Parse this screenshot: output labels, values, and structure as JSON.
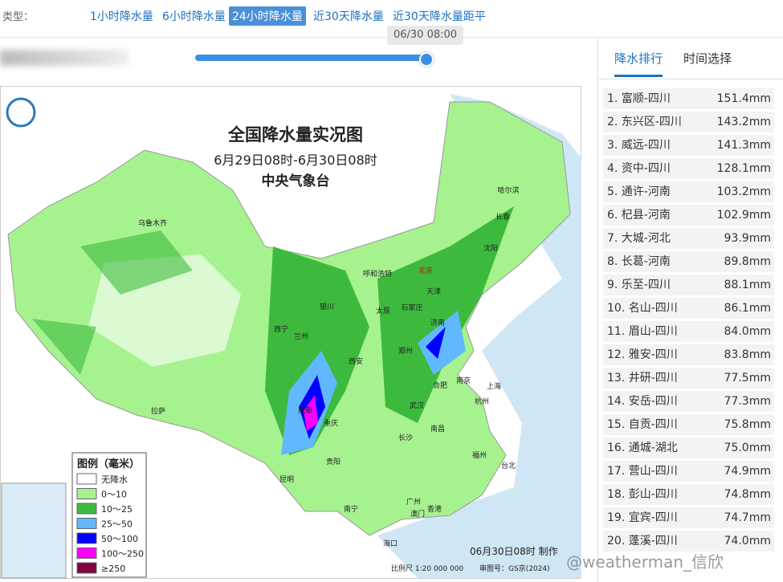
{
  "toolbar": {
    "label": "类型：",
    "tabs": [
      "1小时降水量",
      "6小时降水量",
      "24小时降水量",
      "近30天降水量",
      "近30天降水量距平"
    ],
    "active": 2
  },
  "slider": {
    "time": "06/30 08:00"
  },
  "map": {
    "title": "全国降水量实况图",
    "subtitle": "6月29日08时-6月30日08时",
    "agency": "中央气象台",
    "legend_title": "图例（毫米）",
    "legend": [
      {
        "label": "无降水",
        "color": "#ffffff"
      },
      {
        "label": "0～10",
        "color": "#a6f28f"
      },
      {
        "label": "10～25",
        "color": "#3dba3d"
      },
      {
        "label": "25～50",
        "color": "#61b8ff"
      },
      {
        "label": "50～100",
        "color": "#0000fe"
      },
      {
        "label": "100～250",
        "color": "#fa00fa"
      },
      {
        "label": "≥250",
        "color": "#7f0040"
      }
    ],
    "cities": [
      "乌鲁木齐",
      "拉萨",
      "西宁",
      "兰州",
      "银川",
      "呼和浩特",
      "北京",
      "天津",
      "石家庄",
      "太原",
      "济南",
      "郑州",
      "西安",
      "成都",
      "重庆",
      "武汉",
      "合肥",
      "南京",
      "上海",
      "杭州",
      "南昌",
      "长沙",
      "贵阳",
      "昆明",
      "南宁",
      "广州",
      "澳门",
      "香港",
      "福州",
      "台北",
      "海口",
      "哈尔滨",
      "长春",
      "沈阳"
    ],
    "made": "06月30日08时 制作",
    "scale": "比例尺 1:20 000 000",
    "approval": "审图号：GS京(2024)"
  },
  "panel": {
    "tabs": [
      "降水排行",
      "时间选择"
    ],
    "active": 0,
    "ranking": [
      {
        "label": "1. 富顺-四川",
        "value": "151.4mm"
      },
      {
        "label": "2. 东兴区-四川",
        "value": "143.2mm"
      },
      {
        "label": "3. 威远-四川",
        "value": "141.3mm"
      },
      {
        "label": "4. 资中-四川",
        "value": "128.1mm"
      },
      {
        "label": "5. 通许-河南",
        "value": "103.2mm"
      },
      {
        "label": "6. 杞县-河南",
        "value": "102.9mm"
      },
      {
        "label": "7. 大城-河北",
        "value": "93.9mm"
      },
      {
        "label": "8. 长葛-河南",
        "value": "89.8mm"
      },
      {
        "label": "9. 乐至-四川",
        "value": "88.1mm"
      },
      {
        "label": "10. 名山-四川",
        "value": "86.1mm"
      },
      {
        "label": "11. 眉山-四川",
        "value": "84.0mm"
      },
      {
        "label": "12. 雅安-四川",
        "value": "83.8mm"
      },
      {
        "label": "13. 井研-四川",
        "value": "77.5mm"
      },
      {
        "label": "14. 安岳-四川",
        "value": "77.3mm"
      },
      {
        "label": "15. 自贡-四川",
        "value": "75.8mm"
      },
      {
        "label": "16. 通城-湖北",
        "value": "75.0mm"
      },
      {
        "label": "17. 营山-四川",
        "value": "74.9mm"
      },
      {
        "label": "18. 彭山-四川",
        "value": "74.8mm"
      },
      {
        "label": "19. 宜宾-四川",
        "value": "74.7mm"
      },
      {
        "label": "20. 蓬溪-四川",
        "value": "74.0mm"
      }
    ]
  },
  "watermark": "@weatherman_信欣"
}
